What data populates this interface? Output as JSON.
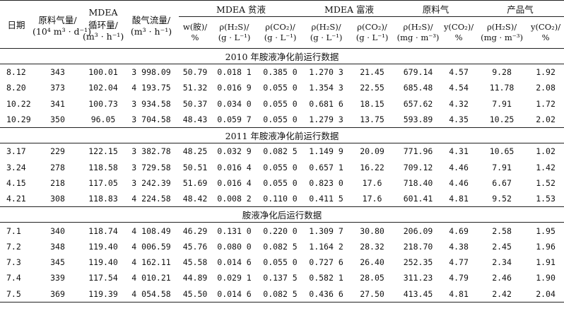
{
  "header": {
    "date": "日期",
    "feed_gas": [
      "原料气量/",
      "(10⁴ m³ · d⁻¹)"
    ],
    "mdea_circ": [
      "MDEA",
      "循环量/",
      "(m³ · h⁻¹)"
    ],
    "acid_gas": [
      "酸气流量/",
      "(m³ · h⁻¹)"
    ],
    "lean_group": "MDEA 贫液",
    "rich_group": "MDEA 富液",
    "raw_group": "原料气",
    "product_group": "产品气",
    "sub": [
      [
        "w(胺)/",
        "%"
      ],
      [
        "ρ(H₂S)/",
        "(g · L⁻¹)"
      ],
      [
        "ρ(CO₂)/",
        "(g · L⁻¹)"
      ],
      [
        "ρ(H₂S)/",
        "(g · L⁻¹)"
      ],
      [
        "ρ(CO₂)/",
        "(g · L⁻¹)"
      ],
      [
        "ρ(H₂S)/",
        "(mg · m⁻³)"
      ],
      [
        "y(CO₂)/",
        "%"
      ],
      [
        "ρ(H₂S)/",
        "(mg · m⁻³)"
      ],
      [
        "y(CO₂)/",
        "%"
      ]
    ]
  },
  "sections": [
    {
      "title": "2010 年胺液净化前运行数据",
      "rows": [
        [
          "8.12",
          "343",
          "100.01",
          "3 998.09",
          "50.79",
          "0.018 1",
          "0.385 0",
          "1.270 3",
          "21.45",
          "679.14",
          "4.57",
          "9.28",
          "1.92"
        ],
        [
          "8.20",
          "373",
          "102.04",
          "4 193.75",
          "51.32",
          "0.016 9",
          "0.055 0",
          "1.354 3",
          "22.55",
          "685.48",
          "4.54",
          "11.78",
          "2.08"
        ],
        [
          "10.22",
          "341",
          "100.73",
          "3 934.58",
          "50.37",
          "0.034 0",
          "0.055 0",
          "0.681 6",
          "18.15",
          "657.62",
          "4.32",
          "7.91",
          "1.72"
        ],
        [
          "10.29",
          "350",
          "96.05",
          "3 704.58",
          "48.43",
          "0.059 7",
          "0.055 0",
          "1.279 3",
          "13.75",
          "593.89",
          "4.35",
          "10.25",
          "2.02"
        ]
      ]
    },
    {
      "title": "2011 年胺液净化前运行数据",
      "rows": [
        [
          "3.17",
          "229",
          "122.15",
          "3 382.78",
          "48.25",
          "0.032 9",
          "0.082 5",
          "1.149 9",
          "20.09",
          "771.96",
          "4.31",
          "10.65",
          "1.02"
        ],
        [
          "3.24",
          "278",
          "118.58",
          "3 729.58",
          "50.51",
          "0.016 4",
          "0.055 0",
          "0.657 1",
          "16.22",
          "709.12",
          "4.46",
          "7.91",
          "1.42"
        ],
        [
          "4.15",
          "218",
          "117.05",
          "3 242.39",
          "51.69",
          "0.016 4",
          "0.055 0",
          "0.823 0",
          "17.6",
          "718.40",
          "4.46",
          "6.67",
          "1.52"
        ],
        [
          "4.21",
          "308",
          "118.83",
          "4 224.58",
          "48.42",
          "0.008 2",
          "0.110 0",
          "0.411 5",
          "17.6",
          "601.41",
          "4.81",
          "9.52",
          "1.53"
        ]
      ]
    },
    {
      "title": "胺液净化后运行数据",
      "rows": [
        [
          "7.1",
          "340",
          "118.74",
          "4 108.49",
          "46.29",
          "0.131 0",
          "0.220 0",
          "1.309 7",
          "30.80",
          "206.09",
          "4.69",
          "2.58",
          "1.95"
        ],
        [
          "7.2",
          "348",
          "119.40",
          "4 006.59",
          "45.76",
          "0.080 0",
          "0.082 5",
          "1.164 2",
          "28.32",
          "218.70",
          "4.38",
          "2.45",
          "1.96"
        ],
        [
          "7.3",
          "345",
          "119.40",
          "4 162.11",
          "45.58",
          "0.014 6",
          "0.055 0",
          "0.727 6",
          "26.40",
          "252.35",
          "4.77",
          "2.34",
          "1.91"
        ],
        [
          "7.4",
          "339",
          "117.54",
          "4 010.21",
          "44.89",
          "0.029 1",
          "0.137 5",
          "0.582 1",
          "28.05",
          "311.23",
          "4.79",
          "2.46",
          "1.90"
        ],
        [
          "7.5",
          "369",
          "119.39",
          "4 054.58",
          "45.50",
          "0.014 6",
          "0.082 5",
          "0.436 6",
          "27.50",
          "413.45",
          "4.81",
          "2.42",
          "2.04"
        ]
      ]
    }
  ]
}
